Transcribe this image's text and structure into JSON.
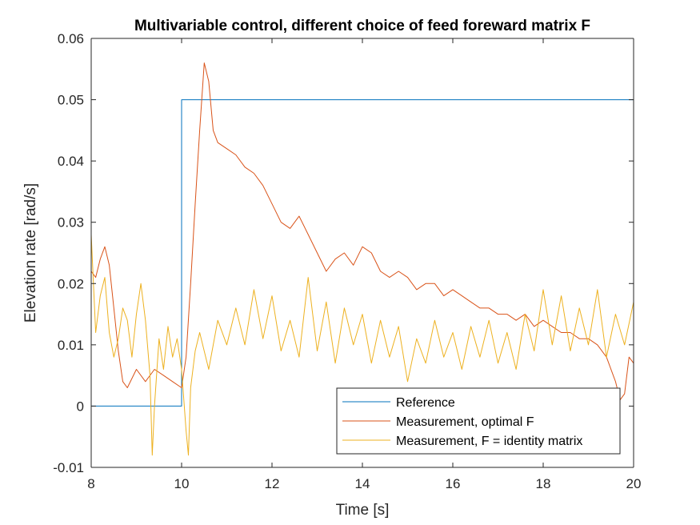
{
  "chart_data": {
    "type": "line",
    "title": "Multivariable control, different choice of feed foreward matrix F",
    "xlabel": "Time [s]",
    "ylabel": "Elevation rate [rad/s]",
    "xlim": [
      8,
      20
    ],
    "ylim": [
      -0.01,
      0.06
    ],
    "xticks": [
      8,
      10,
      12,
      14,
      16,
      18,
      20
    ],
    "xtick_labels": [
      "8",
      "10",
      "12",
      "14",
      "16",
      "18",
      "20"
    ],
    "yticks": [
      -0.01,
      0,
      0.01,
      0.02,
      0.03,
      0.04,
      0.05,
      0.06
    ],
    "ytick_labels": [
      "-0.01",
      "0",
      "0.01",
      "0.02",
      "0.03",
      "0.04",
      "0.05",
      "0.06"
    ],
    "grid": false,
    "legend_position": "bottom-right",
    "series": [
      {
        "name": "Reference",
        "color": "#0072BD",
        "x": [
          8,
          10,
          10,
          20
        ],
        "y": [
          0,
          0,
          0.05,
          0.05
        ]
      },
      {
        "name": "Measurement, optimal F",
        "color": "#D95319",
        "x": [
          8,
          8.1,
          8.2,
          8.3,
          8.4,
          8.5,
          8.6,
          8.7,
          8.8,
          9.0,
          9.2,
          9.4,
          9.6,
          9.8,
          10.0,
          10.1,
          10.2,
          10.3,
          10.4,
          10.5,
          10.6,
          10.7,
          10.8,
          11.0,
          11.2,
          11.4,
          11.6,
          11.8,
          12.0,
          12.2,
          12.4,
          12.6,
          12.8,
          13.0,
          13.2,
          13.4,
          13.6,
          13.8,
          14.0,
          14.2,
          14.4,
          14.6,
          14.8,
          15.0,
          15.2,
          15.4,
          15.6,
          15.8,
          16.0,
          16.2,
          16.4,
          16.6,
          16.8,
          17.0,
          17.2,
          17.4,
          17.6,
          17.8,
          18.0,
          18.2,
          18.4,
          18.6,
          18.8,
          19.0,
          19.2,
          19.4,
          19.6,
          19.7,
          19.8,
          19.9,
          20.0
        ],
        "y": [
          0.022,
          0.021,
          0.024,
          0.026,
          0.023,
          0.016,
          0.009,
          0.004,
          0.003,
          0.006,
          0.004,
          0.006,
          0.005,
          0.004,
          0.003,
          0.008,
          0.02,
          0.033,
          0.045,
          0.056,
          0.053,
          0.045,
          0.043,
          0.042,
          0.041,
          0.039,
          0.038,
          0.036,
          0.033,
          0.03,
          0.029,
          0.031,
          0.028,
          0.025,
          0.022,
          0.024,
          0.025,
          0.023,
          0.026,
          0.025,
          0.022,
          0.021,
          0.022,
          0.021,
          0.019,
          0.02,
          0.02,
          0.018,
          0.019,
          0.018,
          0.017,
          0.016,
          0.016,
          0.015,
          0.015,
          0.014,
          0.015,
          0.013,
          0.014,
          0.013,
          0.012,
          0.012,
          0.011,
          0.011,
          0.01,
          0.008,
          0.004,
          0.001,
          0.002,
          0.008,
          0.007
        ]
      },
      {
        "name": "Measurement, F = identity matrix",
        "color": "#EDB120",
        "x": [
          8,
          8.1,
          8.2,
          8.3,
          8.4,
          8.5,
          8.6,
          8.7,
          8.8,
          8.9,
          9.0,
          9.1,
          9.2,
          9.3,
          9.35,
          9.4,
          9.5,
          9.6,
          9.7,
          9.8,
          9.9,
          10.0,
          10.1,
          10.15,
          10.2,
          10.3,
          10.4,
          10.6,
          10.8,
          11.0,
          11.2,
          11.4,
          11.6,
          11.8,
          12.0,
          12.2,
          12.4,
          12.6,
          12.8,
          13.0,
          13.2,
          13.4,
          13.6,
          13.8,
          14.0,
          14.2,
          14.4,
          14.6,
          14.8,
          15.0,
          15.2,
          15.4,
          15.6,
          15.8,
          16.0,
          16.2,
          16.4,
          16.6,
          16.8,
          17.0,
          17.2,
          17.4,
          17.6,
          17.8,
          18.0,
          18.2,
          18.4,
          18.6,
          18.8,
          19.0,
          19.2,
          19.4,
          19.6,
          19.8,
          20.0
        ],
        "y": [
          0.028,
          0.012,
          0.018,
          0.021,
          0.012,
          0.008,
          0.011,
          0.016,
          0.014,
          0.008,
          0.015,
          0.02,
          0.014,
          0.005,
          -0.008,
          0.0,
          0.011,
          0.006,
          0.013,
          0.008,
          0.011,
          0.006,
          -0.004,
          -0.008,
          0.003,
          0.009,
          0.012,
          0.006,
          0.014,
          0.01,
          0.016,
          0.01,
          0.019,
          0.011,
          0.018,
          0.009,
          0.014,
          0.008,
          0.021,
          0.009,
          0.017,
          0.007,
          0.016,
          0.01,
          0.015,
          0.007,
          0.014,
          0.008,
          0.013,
          0.004,
          0.011,
          0.007,
          0.014,
          0.008,
          0.012,
          0.006,
          0.013,
          0.008,
          0.014,
          0.007,
          0.012,
          0.006,
          0.015,
          0.009,
          0.019,
          0.01,
          0.018,
          0.009,
          0.016,
          0.01,
          0.019,
          0.008,
          0.015,
          0.01,
          0.017
        ]
      }
    ]
  }
}
